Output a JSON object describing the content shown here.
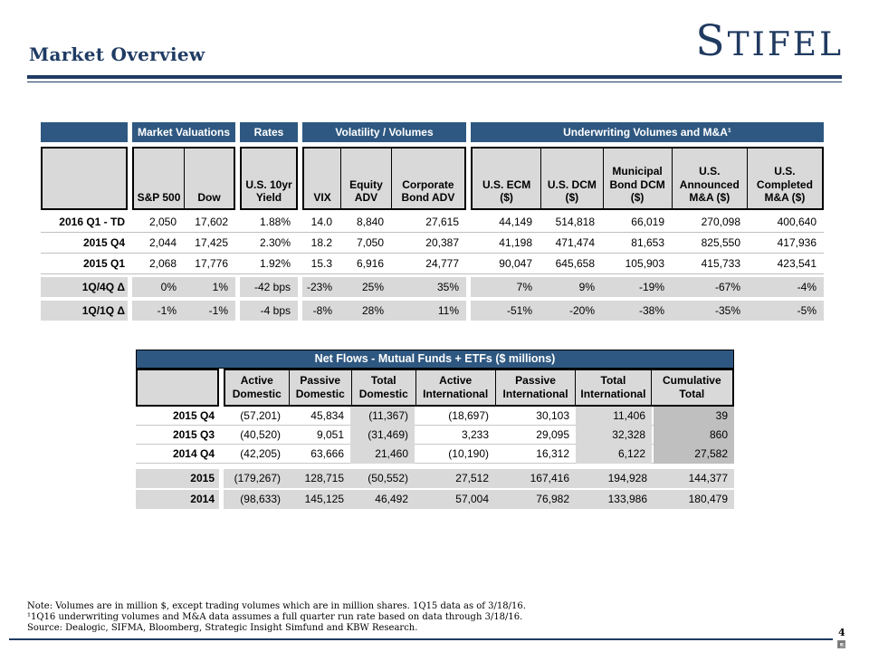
{
  "header": {
    "title": "Market Overview",
    "logo_first": "S",
    "logo_rest": "TIFEL"
  },
  "colors": {
    "navy_bar": "#2E5881",
    "title_navy": "#1F3B63",
    "header_gray": "#D9D9D9",
    "dark_gray": "#BFBFBF"
  },
  "market_table": {
    "groups": {
      "valuations": "Market Valuations",
      "rates": "Rates",
      "volatility": "Volatility / Volumes",
      "underwriting": "Underwriting Volumes and M&A¹"
    },
    "columns": [
      "S&P 500",
      "Dow",
      "U.S. 10yr\nYield",
      "VIX",
      "Equity\nADV",
      "Corporate\nBond ADV",
      "U.S. ECM\n($)",
      "U.S. DCM\n($)",
      "Municipal\nBond DCM\n($)",
      "U.S.\nAnnounced\nM&A ($)",
      "U.S.\nCompleted\nM&A ($)"
    ],
    "rows": [
      {
        "label": "2016 Q1 - TD",
        "values": [
          "2,050",
          "17,602",
          "1.88%",
          "14.0",
          "8,840",
          "27,615",
          "44,149",
          "514,818",
          "66,019",
          "270,098",
          "400,640"
        ]
      },
      {
        "label": "2015 Q4",
        "values": [
          "2,044",
          "17,425",
          "2.30%",
          "18.2",
          "7,050",
          "20,387",
          "41,198",
          "471,474",
          "81,653",
          "825,550",
          "417,936"
        ]
      },
      {
        "label": "2015 Q1",
        "values": [
          "2,068",
          "17,776",
          "1.92%",
          "15.3",
          "6,916",
          "24,777",
          "90,047",
          "645,658",
          "105,903",
          "415,733",
          "423,541"
        ]
      }
    ],
    "delta_rows": [
      {
        "label": "1Q/4Q Δ",
        "values": [
          "0%",
          "1%",
          "-42 bps",
          "-23%",
          "25%",
          "35%",
          "7%",
          "9%",
          "-19%",
          "-67%",
          "-4%"
        ]
      },
      {
        "label": "1Q/1Q Δ",
        "values": [
          "-1%",
          "-1%",
          "-4 bps",
          "-8%",
          "28%",
          "11%",
          "-51%",
          "-20%",
          "-38%",
          "-35%",
          "-5%"
        ]
      }
    ]
  },
  "net_flows_table": {
    "title": "Net Flows - Mutual Funds + ETFs ($ millions)",
    "columns": [
      "Active\nDomestic",
      "Passive\nDomestic",
      "Total\nDomestic",
      "Active\nInternational",
      "Passive\nInternational",
      "Total\nInternational",
      "Cumulative\nTotal"
    ],
    "quarter_rows": [
      {
        "label": "2015 Q4",
        "values": [
          "(57,201)",
          "45,834",
          "(11,367)",
          "(18,697)",
          "30,103",
          "11,406",
          "39"
        ]
      },
      {
        "label": "2015 Q3",
        "values": [
          "(40,520)",
          "9,051",
          "(31,469)",
          "3,233",
          "29,095",
          "32,328",
          "860"
        ]
      },
      {
        "label": "2014 Q4",
        "values": [
          "(42,205)",
          "63,666",
          "21,460",
          "(10,190)",
          "16,312",
          "6,122",
          "27,582"
        ]
      }
    ],
    "year_rows": [
      {
        "label": "2015",
        "values": [
          "(179,267)",
          "128,715",
          "(50,552)",
          "27,512",
          "167,416",
          "194,928",
          "144,377"
        ]
      },
      {
        "label": "2014",
        "values": [
          "(98,633)",
          "145,125",
          "46,492",
          "57,004",
          "76,982",
          "133,986",
          "180,479"
        ]
      }
    ]
  },
  "footnotes": [
    "Note:  Volumes are in million $, except  trading volumes  which are in million shares. 1Q15 data as of 3/18/16.",
    "¹1Q16 underwriting volumes  and M&A data assumes  a full quarter run rate based on data through 3/18/16.",
    "Source:  Dealogic, SIFMA, Bloomberg, Strategic Insight  Simfund  and KBW Research."
  ],
  "footer": {
    "page_number": "4"
  }
}
